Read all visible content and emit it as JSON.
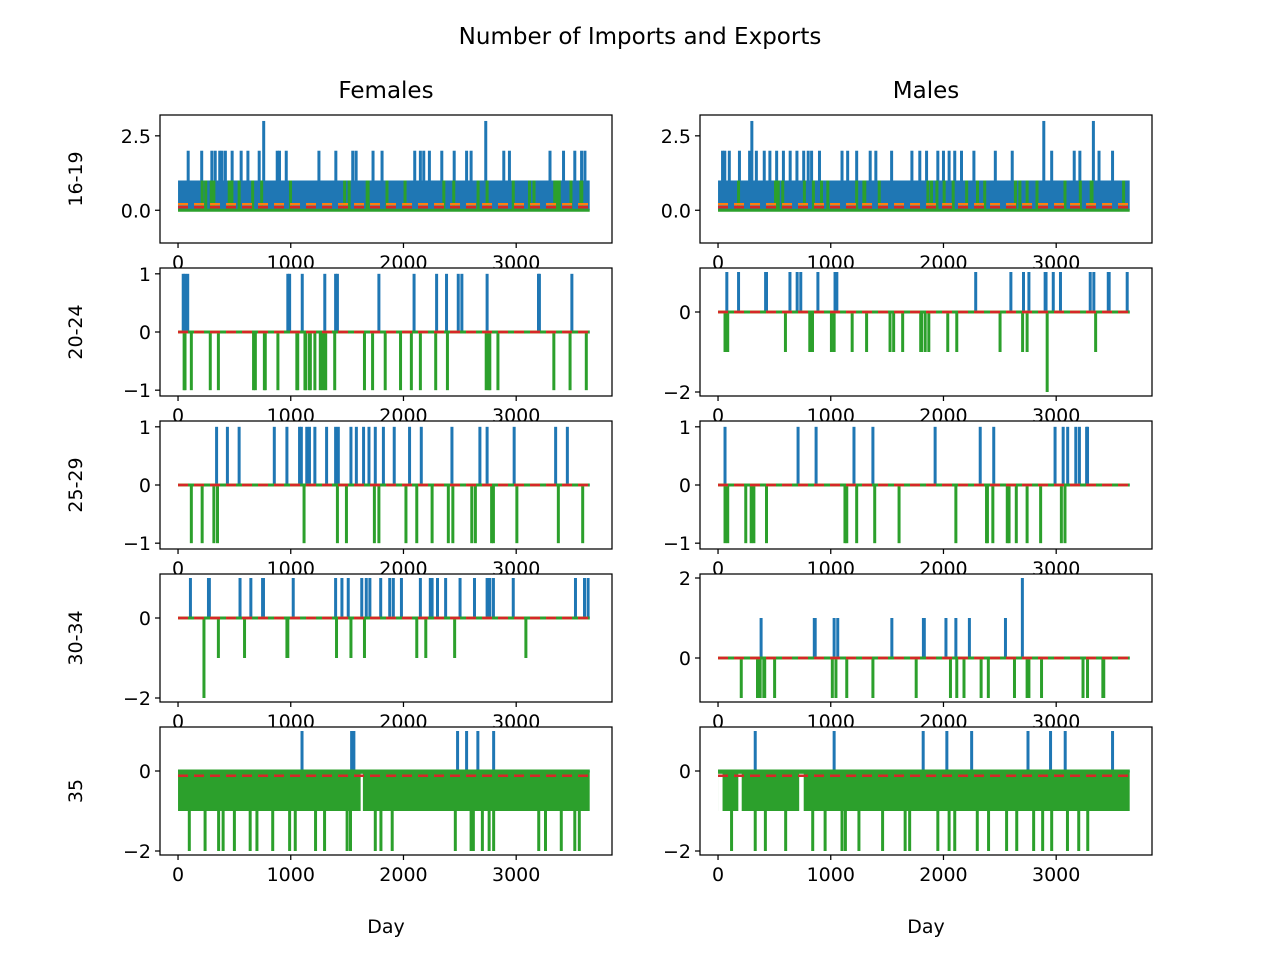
{
  "figure": {
    "suptitle": "Number of Imports and Exports",
    "col_titles": [
      "Females",
      "Males"
    ],
    "row_labels": [
      "16-19",
      "20-24",
      "25-29",
      "30-34",
      "35"
    ],
    "xlabel": "Day"
  },
  "colors": {
    "imports": "#1f77b4",
    "exports": "#2ca02c",
    "mean": "#d62728",
    "mean_alt": "#ff7f0e"
  },
  "chart_data": {
    "type": "line",
    "x_range": [
      0,
      3652
    ],
    "xticks": [
      0,
      1000,
      2000,
      3000
    ],
    "panels": [
      {
        "row": "16-19",
        "col": "Females",
        "ylim": [
          -1.1,
          3.2
        ],
        "yticks": [
          0.0,
          2.5
        ],
        "ytick_labels": [
          "0.0",
          "2.5"
        ],
        "mean": 0.1,
        "mean2": 0.2,
        "imports": {
          "base": 1,
          "density": 0.0,
          "peaks": [
            [
              90,
              2
            ],
            [
              210,
              2
            ],
            [
              300,
              2
            ],
            [
              330,
              2
            ],
            [
              370,
              2
            ],
            [
              390,
              2
            ],
            [
              420,
              2
            ],
            [
              480,
              2
            ],
            [
              560,
              2
            ],
            [
              620,
              2
            ],
            [
              720,
              2
            ],
            [
              760,
              3
            ],
            [
              880,
              2
            ],
            [
              900,
              2
            ],
            [
              960,
              2
            ],
            [
              1250,
              2
            ],
            [
              1400,
              2
            ],
            [
              1550,
              2
            ],
            [
              1580,
              2
            ],
            [
              1730,
              2
            ],
            [
              1810,
              2
            ],
            [
              2100,
              2
            ],
            [
              2150,
              2
            ],
            [
              2180,
              2
            ],
            [
              2230,
              2
            ],
            [
              2340,
              2
            ],
            [
              2450,
              2
            ],
            [
              2560,
              2
            ],
            [
              2600,
              2
            ],
            [
              2730,
              3
            ],
            [
              2890,
              2
            ],
            [
              2940,
              2
            ],
            [
              3300,
              2
            ],
            [
              3420,
              2
            ],
            [
              3520,
              2
            ],
            [
              3580,
              2
            ],
            [
              3610,
              2
            ]
          ]
        },
        "exports": {
          "base": 0,
          "density": 0.055,
          "seed": 11,
          "peaks": []
        }
      },
      {
        "row": "16-19",
        "col": "Males",
        "ylim": [
          -1.1,
          3.2
        ],
        "yticks": [
          0.0,
          2.5
        ],
        "ytick_labels": [
          "0.0",
          "2.5"
        ],
        "mean": 0.1,
        "mean2": 0.2,
        "imports": {
          "base": 1,
          "density": 0.0,
          "peaks": [
            [
              40,
              2
            ],
            [
              60,
              2
            ],
            [
              100,
              2
            ],
            [
              190,
              2
            ],
            [
              280,
              2
            ],
            [
              300,
              3
            ],
            [
              340,
              2
            ],
            [
              410,
              2
            ],
            [
              460,
              2
            ],
            [
              520,
              2
            ],
            [
              580,
              2
            ],
            [
              640,
              2
            ],
            [
              700,
              2
            ],
            [
              760,
              2
            ],
            [
              800,
              2
            ],
            [
              830,
              2
            ],
            [
              900,
              2
            ],
            [
              1100,
              2
            ],
            [
              1150,
              2
            ],
            [
              1230,
              2
            ],
            [
              1350,
              2
            ],
            [
              1400,
              2
            ],
            [
              1540,
              2
            ],
            [
              1720,
              2
            ],
            [
              1790,
              2
            ],
            [
              1850,
              2
            ],
            [
              1950,
              2
            ],
            [
              2000,
              2
            ],
            [
              2050,
              2
            ],
            [
              2100,
              2
            ],
            [
              2160,
              2
            ],
            [
              2270,
              2
            ],
            [
              2460,
              2
            ],
            [
              2610,
              2
            ],
            [
              2890,
              3
            ],
            [
              2960,
              2
            ],
            [
              3160,
              2
            ],
            [
              3210,
              2
            ],
            [
              3330,
              3
            ],
            [
              3380,
              2
            ],
            [
              3500,
              2
            ]
          ]
        },
        "exports": {
          "base": 0,
          "density": 0.05,
          "seed": 23,
          "peaks": []
        }
      },
      {
        "row": "20-24",
        "col": "Females",
        "ylim": [
          -1.1,
          1.1
        ],
        "yticks": [
          -1,
          0,
          1
        ],
        "ytick_labels": [
          "−1",
          "0",
          "1"
        ],
        "mean": 0.0,
        "mean2": 0.0,
        "imports": {
          "base": 0,
          "density": 0.06,
          "seed": 31,
          "peaks": []
        },
        "exports": {
          "base": 0,
          "density": 0.08,
          "seed": 37,
          "min": -1,
          "peaks": []
        }
      },
      {
        "row": "20-24",
        "col": "Males",
        "ylim": [
          -2.1,
          1.1
        ],
        "yticks": [
          -2,
          0
        ],
        "ytick_labels": [
          "−2",
          "0"
        ],
        "mean": 0.0,
        "mean2": 0.0,
        "imports": {
          "base": 0,
          "density": 0.045,
          "seed": 41,
          "peaks": []
        },
        "exports": {
          "base": 0,
          "density": 0.05,
          "seed": 43,
          "min": -1,
          "peaks": [
            [
              2920,
              -2
            ]
          ]
        }
      },
      {
        "row": "25-29",
        "col": "Females",
        "ylim": [
          -1.1,
          1.1
        ],
        "yticks": [
          -1,
          0,
          1
        ],
        "ytick_labels": [
          "−1",
          "0",
          "1"
        ],
        "mean": 0.0,
        "mean2": 0.0,
        "imports": {
          "base": 0,
          "density": 0.05,
          "seed": 51,
          "peaks": []
        },
        "exports": {
          "base": 0,
          "density": 0.05,
          "seed": 53,
          "min": -1,
          "peaks": []
        }
      },
      {
        "row": "25-29",
        "col": "Males",
        "ylim": [
          -1.1,
          1.1
        ],
        "yticks": [
          -1,
          0,
          1
        ],
        "ytick_labels": [
          "−1",
          "0",
          "1"
        ],
        "mean": 0.0,
        "mean2": 0.0,
        "imports": {
          "base": 0,
          "density": 0.05,
          "seed": 61,
          "peaks": []
        },
        "exports": {
          "base": 0,
          "density": 0.04,
          "seed": 67,
          "min": -1,
          "peaks": []
        }
      },
      {
        "row": "30-34",
        "col": "Females",
        "ylim": [
          -2.1,
          1.1
        ],
        "yticks": [
          -2,
          0
        ],
        "ytick_labels": [
          "−2",
          "0"
        ],
        "mean": 0.0,
        "mean2": 0.0,
        "imports": {
          "base": 0,
          "density": 0.065,
          "seed": 71,
          "peaks": []
        },
        "exports": {
          "base": 0,
          "density": 0.035,
          "seed": 73,
          "min": -1,
          "peaks": [
            [
              230,
              -2
            ]
          ]
        }
      },
      {
        "row": "30-34",
        "col": "Males",
        "ylim": [
          -1.1,
          2.1
        ],
        "yticks": [
          0,
          2
        ],
        "ytick_labels": [
          "0",
          "2"
        ],
        "mean": 0.0,
        "mean2": 0.0,
        "imports": {
          "base": 0,
          "density": 0.035,
          "seed": 81,
          "peaks": [
            [
              2700,
              2
            ]
          ]
        },
        "exports": {
          "base": 0,
          "density": 0.045,
          "seed": 83,
          "min": -1,
          "peaks": []
        }
      },
      {
        "row": "35",
        "col": "Females",
        "ylim": [
          -2.1,
          1.1
        ],
        "yticks": [
          -2,
          0
        ],
        "ytick_labels": [
          "−2",
          "0"
        ],
        "mean": -0.12,
        "mean2": -0.12,
        "imports": {
          "base": 0,
          "density": 0.0,
          "peaks": [
            [
              1100,
              1
            ],
            [
              1540,
              1
            ],
            [
              1560,
              1
            ],
            [
              2480,
              1
            ],
            [
              2560,
              1
            ],
            [
              2660,
              1
            ],
            [
              2800,
              1
            ]
          ]
        },
        "exports": {
          "base": -1,
          "density": 0.0,
          "peaks": [
            [
              100,
              -2
            ],
            [
              240,
              -2
            ],
            [
              360,
              -2
            ],
            [
              400,
              -2
            ],
            [
              500,
              -2
            ],
            [
              640,
              -2
            ],
            [
              700,
              -2
            ],
            [
              840,
              -2
            ],
            [
              990,
              -2
            ],
            [
              1040,
              -2
            ],
            [
              1220,
              -2
            ],
            [
              1300,
              -2
            ],
            [
              1500,
              -2
            ],
            [
              1530,
              -2
            ],
            [
              1750,
              -2
            ],
            [
              1800,
              -2
            ],
            [
              1900,
              -2
            ],
            [
              2460,
              -2
            ],
            [
              2600,
              -2
            ],
            [
              2620,
              -2
            ],
            [
              2700,
              -2
            ],
            [
              2760,
              -2
            ],
            [
              2800,
              -2
            ],
            [
              3200,
              -2
            ],
            [
              3260,
              -2
            ],
            [
              3400,
              -2
            ],
            [
              3520,
              -2
            ],
            [
              3560,
              -2
            ]
          ],
          "gaps": [
            [
              1620,
              1640
            ]
          ]
        }
      },
      {
        "row": "35",
        "col": "Males",
        "ylim": [
          -2.1,
          1.1
        ],
        "yticks": [
          -2,
          0
        ],
        "ytick_labels": [
          "−2",
          "0"
        ],
        "mean": -0.12,
        "mean2": -0.12,
        "imports": {
          "base": 0,
          "density": 0.0,
          "peaks": [
            [
              330,
              1
            ],
            [
              1030,
              1
            ],
            [
              1820,
              1
            ],
            [
              2030,
              1
            ],
            [
              2250,
              1
            ],
            [
              2750,
              1
            ],
            [
              2950,
              1
            ],
            [
              3080,
              1
            ],
            [
              3500,
              1
            ]
          ]
        },
        "exports": {
          "base": -1,
          "density": 0.0,
          "peaks": [
            [
              120,
              -2
            ],
            [
              330,
              -2
            ],
            [
              420,
              -2
            ],
            [
              600,
              -2
            ],
            [
              840,
              -2
            ],
            [
              950,
              -2
            ],
            [
              1100,
              -2
            ],
            [
              1130,
              -2
            ],
            [
              1250,
              -2
            ],
            [
              1460,
              -2
            ],
            [
              1660,
              -2
            ],
            [
              1700,
              -2
            ],
            [
              1950,
              -2
            ],
            [
              2050,
              -2
            ],
            [
              2100,
              -2
            ],
            [
              2300,
              -2
            ],
            [
              2400,
              -2
            ],
            [
              2560,
              -2
            ],
            [
              2650,
              -2
            ],
            [
              2800,
              -2
            ],
            [
              2880,
              -2
            ],
            [
              2960,
              -2
            ],
            [
              3100,
              -2
            ],
            [
              3200,
              -2
            ],
            [
              3280,
              -2
            ]
          ],
          "gaps": [
            [
              0,
              40
            ],
            [
              180,
              210
            ],
            [
              720,
              760
            ]
          ]
        }
      }
    ]
  }
}
